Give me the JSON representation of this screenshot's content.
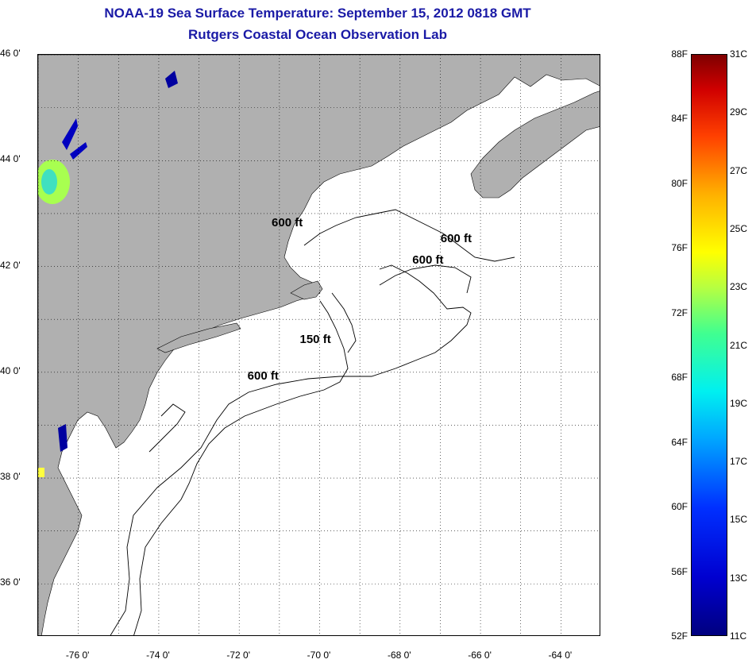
{
  "header": {
    "title": "NOAA-19 Sea Surface Temperature:  September 15, 2012 0818 GMT",
    "subtitle": "Rutgers Coastal Ocean Observation Lab"
  },
  "map": {
    "lon_range": [
      -77,
      -63
    ],
    "lat_range": [
      35,
      46
    ],
    "lat_labels": [
      "46 0'",
      "44 0'",
      "42 0'",
      "40 0'",
      "38 0'",
      "36 0'"
    ],
    "lon_labels": [
      "-76 0'",
      "-74 0'",
      "-72 0'",
      "-70 0'",
      "-68 0'",
      "-66 0'",
      "-64 0'"
    ],
    "contour_labels": [
      {
        "text": "600 ft",
        "lon": -70.7,
        "lat": 42.8
      },
      {
        "text": "600 ft",
        "lon": -66.5,
        "lat": 42.5
      },
      {
        "text": "600 ft",
        "lon": -67.2,
        "lat": 42.1
      },
      {
        "text": "150 ft",
        "lon": -70.0,
        "lat": 40.6
      },
      {
        "text": "600 ft",
        "lon": -71.3,
        "lat": 39.9
      }
    ],
    "colors": {
      "land": "#b0b0b0",
      "ocean": "#ffffff",
      "contour": "#000000",
      "grid": "#000000"
    }
  },
  "colorbar": {
    "fahrenheit": [
      "88F",
      "84F",
      "80F",
      "76F",
      "72F",
      "68F",
      "64F",
      "60F",
      "56F",
      "52F"
    ],
    "celsius": [
      "31C",
      "29C",
      "27C",
      "25C",
      "23C",
      "21C",
      "19C",
      "17C",
      "15C",
      "13C",
      "11C"
    ],
    "f_range": [
      52,
      88
    ],
    "c_range": [
      11,
      31
    ]
  }
}
